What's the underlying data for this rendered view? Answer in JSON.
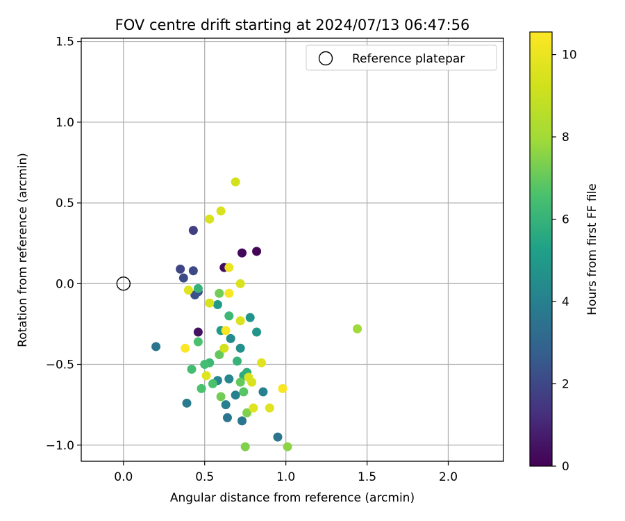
{
  "chart_data": {
    "type": "scatter",
    "title": "FOV centre drift starting at 2024/07/13 06:47:56",
    "xlabel": "Angular distance from reference (arcmin)",
    "ylabel": "Rotation from reference (arcmin)",
    "xlim": [
      -0.26,
      2.34
    ],
    "ylim": [
      -1.1,
      1.52
    ],
    "xticks": [
      0.0,
      0.5,
      1.0,
      1.5,
      2.0
    ],
    "xtick_labels": [
      "0.0",
      "0.5",
      "1.0",
      "1.5",
      "2.0"
    ],
    "yticks": [
      -1.0,
      -0.5,
      0.0,
      0.5,
      1.0,
      1.5
    ],
    "ytick_labels": [
      "−1.0",
      "−0.5",
      "0.0",
      "0.5",
      "1.0",
      "1.5"
    ],
    "grid": true,
    "legend": {
      "position": "top-right",
      "entries": [
        "Reference platepar"
      ]
    },
    "colorbar": {
      "label": "Hours from first FF file",
      "colormap": "viridis",
      "range": [
        0,
        10.55
      ],
      "ticks": [
        0,
        2,
        4,
        6,
        8,
        10
      ],
      "tick_labels": [
        "0",
        "2",
        "4",
        "6",
        "8",
        "10"
      ]
    },
    "reference_point": {
      "x": 0.0,
      "y": 0.0,
      "label": "Reference platepar"
    },
    "points": [
      {
        "x": 0.82,
        "y": 0.2,
        "h": 0.1
      },
      {
        "x": 0.73,
        "y": 0.19,
        "h": 0.2
      },
      {
        "x": 0.62,
        "y": 0.1,
        "h": 0.3
      },
      {
        "x": 0.46,
        "y": -0.3,
        "h": 0.4
      },
      {
        "x": 0.43,
        "y": 0.33,
        "h": 1.7
      },
      {
        "x": 0.35,
        "y": 0.09,
        "h": 1.9
      },
      {
        "x": 0.43,
        "y": 0.08,
        "h": 2.0
      },
      {
        "x": 0.37,
        "y": 0.035,
        "h": 2.1
      },
      {
        "x": 0.46,
        "y": -0.05,
        "h": 2.2
      },
      {
        "x": 0.44,
        "y": -0.07,
        "h": 2.3
      },
      {
        "x": 0.2,
        "y": -0.39,
        "h": 3.6
      },
      {
        "x": 0.39,
        "y": -0.74,
        "h": 3.8
      },
      {
        "x": 0.95,
        "y": -0.95,
        "h": 3.6
      },
      {
        "x": 0.64,
        "y": -0.83,
        "h": 3.6
      },
      {
        "x": 0.73,
        "y": -0.85,
        "h": 3.6
      },
      {
        "x": 0.63,
        "y": -0.75,
        "h": 4.0
      },
      {
        "x": 0.69,
        "y": -0.69,
        "h": 4.0
      },
      {
        "x": 0.86,
        "y": -0.67,
        "h": 4.0
      },
      {
        "x": 0.58,
        "y": -0.6,
        "h": 4.2
      },
      {
        "x": 0.65,
        "y": -0.59,
        "h": 4.2
      },
      {
        "x": 0.66,
        "y": -0.34,
        "h": 4.4
      },
      {
        "x": 0.72,
        "y": -0.4,
        "h": 4.6
      },
      {
        "x": 0.82,
        "y": -0.3,
        "h": 4.8
      },
      {
        "x": 0.78,
        "y": -0.21,
        "h": 4.8
      },
      {
        "x": 0.6,
        "y": -0.29,
        "h": 5.0
      },
      {
        "x": 0.58,
        "y": -0.13,
        "h": 5.0
      },
      {
        "x": 0.74,
        "y": -0.57,
        "h": 5.6
      },
      {
        "x": 0.76,
        "y": -0.55,
        "h": 5.8
      },
      {
        "x": 0.7,
        "y": -0.48,
        "h": 6.0
      },
      {
        "x": 0.46,
        "y": -0.03,
        "h": 6.0
      },
      {
        "x": 0.65,
        "y": -0.2,
        "h": 6.2
      },
      {
        "x": 0.53,
        "y": -0.49,
        "h": 6.2
      },
      {
        "x": 0.5,
        "y": -0.5,
        "h": 6.4
      },
      {
        "x": 0.42,
        "y": -0.53,
        "h": 6.4
      },
      {
        "x": 0.48,
        "y": -0.65,
        "h": 6.6
      },
      {
        "x": 0.46,
        "y": -0.36,
        "h": 6.6
      },
      {
        "x": 0.55,
        "y": -0.62,
        "h": 6.6
      },
      {
        "x": 0.74,
        "y": -0.67,
        "h": 6.8
      },
      {
        "x": 0.72,
        "y": -0.61,
        "h": 7.0
      },
      {
        "x": 0.59,
        "y": -0.44,
        "h": 7.0
      },
      {
        "x": 0.59,
        "y": -0.06,
        "h": 7.2
      },
      {
        "x": 0.6,
        "y": -0.7,
        "h": 7.2
      },
      {
        "x": 0.75,
        "y": -1.01,
        "h": 7.4
      },
      {
        "x": 0.76,
        "y": -0.8,
        "h": 7.4
      },
      {
        "x": 1.01,
        "y": -1.01,
        "h": 7.6
      },
      {
        "x": 1.44,
        "y": -0.28,
        "h": 7.9
      },
      {
        "x": 0.69,
        "y": 0.63,
        "h": 9.3
      },
      {
        "x": 0.6,
        "y": 0.45,
        "h": 9.5
      },
      {
        "x": 0.53,
        "y": 0.4,
        "h": 9.5
      },
      {
        "x": 0.72,
        "y": 0.0,
        "h": 9.5
      },
      {
        "x": 0.4,
        "y": -0.04,
        "h": 9.7
      },
      {
        "x": 0.53,
        "y": -0.12,
        "h": 9.5
      },
      {
        "x": 0.72,
        "y": -0.23,
        "h": 9.5
      },
      {
        "x": 0.62,
        "y": -0.4,
        "h": 9.3
      },
      {
        "x": 0.85,
        "y": -0.49,
        "h": 9.7
      },
      {
        "x": 0.77,
        "y": -0.58,
        "h": 9.5
      },
      {
        "x": 0.79,
        "y": -0.61,
        "h": 9.5
      },
      {
        "x": 0.51,
        "y": -0.57,
        "h": 9.7
      },
      {
        "x": 0.8,
        "y": -0.77,
        "h": 9.7
      },
      {
        "x": 0.9,
        "y": -0.77,
        "h": 9.7
      },
      {
        "x": 0.65,
        "y": 0.1,
        "h": 10.0
      },
      {
        "x": 0.65,
        "y": -0.06,
        "h": 10.4
      },
      {
        "x": 0.63,
        "y": -0.29,
        "h": 10.4
      },
      {
        "x": 0.38,
        "y": -0.4,
        "h": 10.5
      },
      {
        "x": 0.98,
        "y": -0.65,
        "h": 10.4
      }
    ]
  }
}
